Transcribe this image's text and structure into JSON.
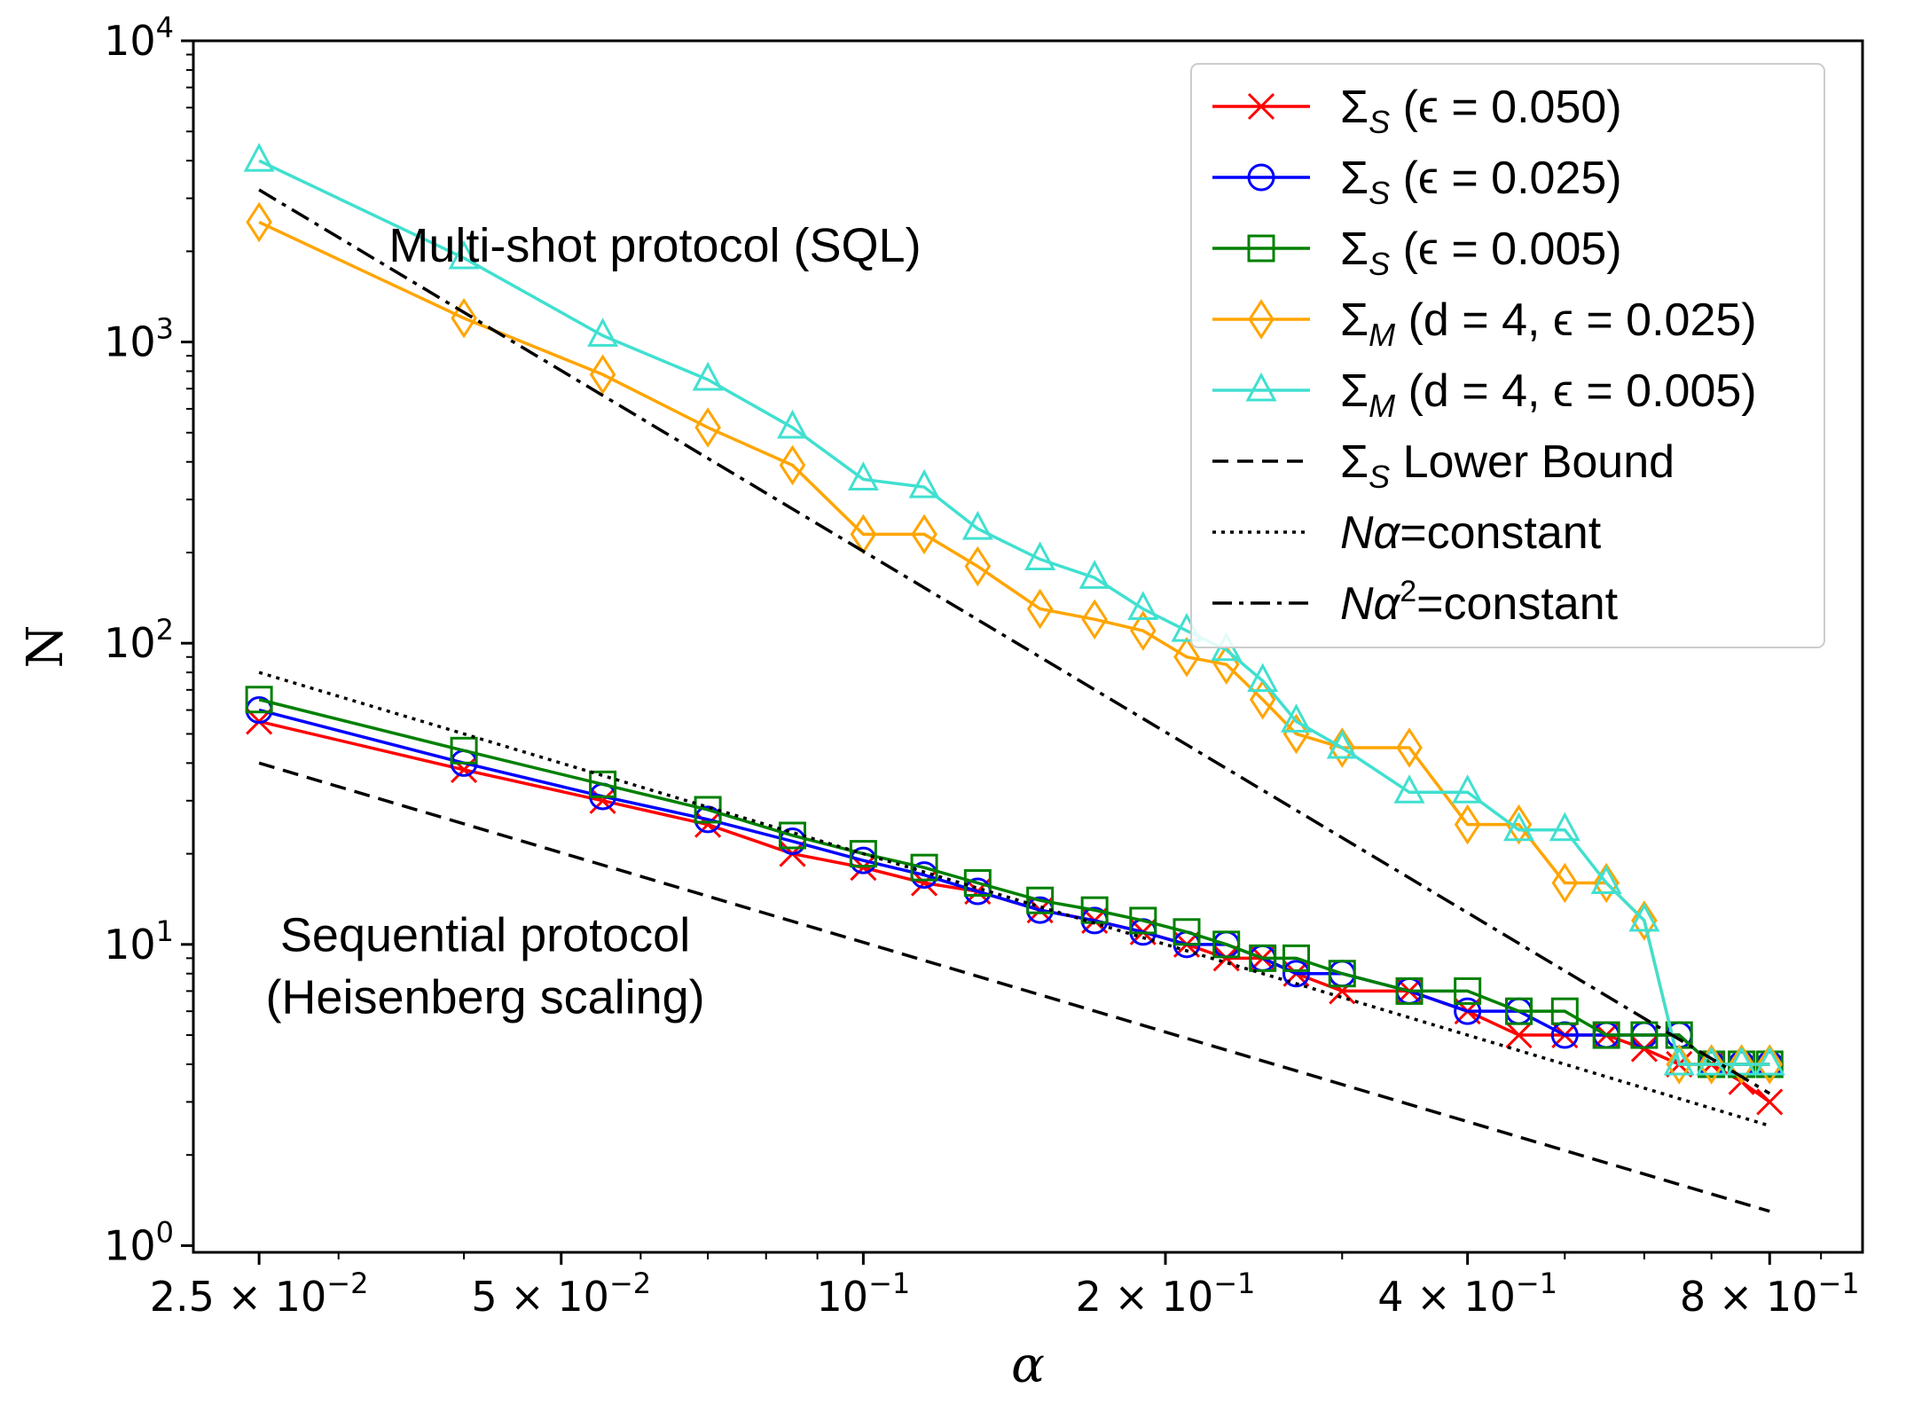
{
  "chart_data": {
    "type": "line",
    "xlabel": "α",
    "ylabel": "N",
    "x_scale": "log",
    "y_scale": "log",
    "xlim": [
      0.0215,
      0.99
    ],
    "ylim": [
      0.95,
      10000
    ],
    "x_ticks": [
      {
        "value": 0.025,
        "mantissa": "2.5",
        "exp": "−2"
      },
      {
        "value": 0.05,
        "mantissa": "5",
        "exp": "−2"
      },
      {
        "value": 0.1,
        "mantissa": "",
        "exp": "−1"
      },
      {
        "value": 0.2,
        "mantissa": "2",
        "exp": "−1"
      },
      {
        "value": 0.4,
        "mantissa": "4",
        "exp": "−1"
      },
      {
        "value": 0.8,
        "mantissa": "8",
        "exp": "−1"
      }
    ],
    "y_ticks": [
      {
        "value": 1,
        "exp": "0"
      },
      {
        "value": 10,
        "exp": "1"
      },
      {
        "value": 100,
        "exp": "2"
      },
      {
        "value": 1000,
        "exp": "3"
      },
      {
        "value": 10000,
        "exp": "4"
      }
    ],
    "annotations": [
      {
        "text": "Multi-shot protocol (SQL)",
        "x": 0.062,
        "y": 1850
      },
      {
        "text": "Sequential protocol",
        "x": 0.042,
        "y": 9.5
      },
      {
        "text": "(Heisenberg scaling)",
        "x": 0.042,
        "y": 5.9
      }
    ],
    "legend": {
      "position": "upper right"
    },
    "series": [
      {
        "label_main": "Σ",
        "label_sub": "S",
        "label_params": "(ϵ = 0.050)",
        "color": "#ff0000",
        "marker": "x",
        "linestyle": "solid",
        "x": [
          0.025,
          0.04,
          0.055,
          0.07,
          0.085,
          0.1,
          0.115,
          0.13,
          0.15,
          0.17,
          0.19,
          0.21,
          0.23,
          0.25,
          0.27,
          0.3,
          0.35,
          0.4,
          0.45,
          0.5,
          0.55,
          0.6,
          0.65,
          0.7,
          0.75,
          0.8
        ],
        "y": [
          55,
          38,
          30,
          25,
          20,
          18,
          16,
          15,
          13,
          12,
          11,
          10,
          9,
          9,
          8,
          7,
          7,
          6,
          5,
          5,
          5,
          4.5,
          4,
          4,
          3.5,
          3
        ]
      },
      {
        "label_main": "Σ",
        "label_sub": "S",
        "label_params": "(ϵ = 0.025)",
        "color": "#0000ff",
        "marker": "o",
        "linestyle": "solid",
        "x": [
          0.025,
          0.04,
          0.055,
          0.07,
          0.085,
          0.1,
          0.115,
          0.13,
          0.15,
          0.17,
          0.19,
          0.21,
          0.23,
          0.25,
          0.27,
          0.3,
          0.35,
          0.4,
          0.45,
          0.5,
          0.55,
          0.6,
          0.65,
          0.7,
          0.75,
          0.8
        ],
        "y": [
          60,
          40,
          31,
          26,
          22,
          19,
          17,
          15,
          13,
          12,
          11,
          10,
          10,
          9,
          8,
          8,
          7,
          6,
          6,
          5,
          5,
          5,
          5,
          4,
          4,
          4
        ]
      },
      {
        "label_main": "Σ",
        "label_sub": "S",
        "label_params": "(ϵ = 0.005)",
        "color": "#008000",
        "marker": "s",
        "linestyle": "solid",
        "x": [
          0.025,
          0.04,
          0.055,
          0.07,
          0.085,
          0.1,
          0.115,
          0.13,
          0.15,
          0.17,
          0.19,
          0.21,
          0.23,
          0.25,
          0.27,
          0.3,
          0.35,
          0.4,
          0.45,
          0.5,
          0.55,
          0.6,
          0.65,
          0.7,
          0.75,
          0.8
        ],
        "y": [
          65,
          44,
          34,
          28,
          23,
          20,
          18,
          16,
          14,
          13,
          12,
          11,
          10,
          9,
          9,
          8,
          7,
          7,
          6,
          6,
          5,
          5,
          5,
          4,
          4,
          4
        ]
      },
      {
        "label_main": "Σ",
        "label_sub": "M",
        "label_params": "(d = 4, ϵ = 0.025)",
        "color": "#ffa500",
        "marker": "d",
        "linestyle": "solid",
        "x": [
          0.025,
          0.04,
          0.055,
          0.07,
          0.085,
          0.1,
          0.115,
          0.13,
          0.15,
          0.17,
          0.19,
          0.21,
          0.23,
          0.25,
          0.27,
          0.3,
          0.35,
          0.4,
          0.45,
          0.5,
          0.55,
          0.6,
          0.65,
          0.7,
          0.75,
          0.8
        ],
        "y": [
          2500,
          1200,
          780,
          520,
          390,
          230,
          230,
          180,
          130,
          120,
          110,
          90,
          85,
          65,
          50,
          45,
          45,
          25,
          25,
          16,
          16,
          12,
          4,
          4,
          4,
          4
        ]
      },
      {
        "label_main": "Σ",
        "label_sub": "M",
        "label_params": "(d = 4, ϵ = 0.005)",
        "color": "#40e0d0",
        "marker": "^",
        "linestyle": "solid",
        "x": [
          0.025,
          0.04,
          0.055,
          0.07,
          0.085,
          0.1,
          0.115,
          0.13,
          0.15,
          0.17,
          0.19,
          0.21,
          0.23,
          0.25,
          0.27,
          0.3,
          0.35,
          0.4,
          0.45,
          0.5,
          0.55,
          0.6,
          0.65,
          0.7,
          0.75,
          0.8
        ],
        "y": [
          4000,
          1900,
          1050,
          750,
          520,
          350,
          330,
          240,
          190,
          165,
          130,
          110,
          95,
          75,
          55,
          45,
          32,
          32,
          24,
          24,
          16,
          12,
          4,
          4,
          4,
          4
        ]
      },
      {
        "label_main": "Σ",
        "label_sub": "S",
        "label_params": "Lower Bound",
        "color": "#000000",
        "marker": "",
        "linestyle": "dashed",
        "x": [
          0.025,
          0.8
        ],
        "y": [
          40,
          1.3
        ]
      },
      {
        "label_main": "Nα",
        "label_sub": "",
        "label_params": "=constant",
        "color": "#000000",
        "marker": "",
        "linestyle": "dotted",
        "x": [
          0.025,
          0.8
        ],
        "y": [
          80,
          2.5
        ]
      },
      {
        "label_main": "Nα",
        "label_sup": "2",
        "label_sub": "",
        "label_params": "=constant",
        "color": "#000000",
        "marker": "",
        "linestyle": "dashdot",
        "x": [
          0.025,
          0.8
        ],
        "y": [
          3200,
          3.2
        ]
      }
    ]
  }
}
